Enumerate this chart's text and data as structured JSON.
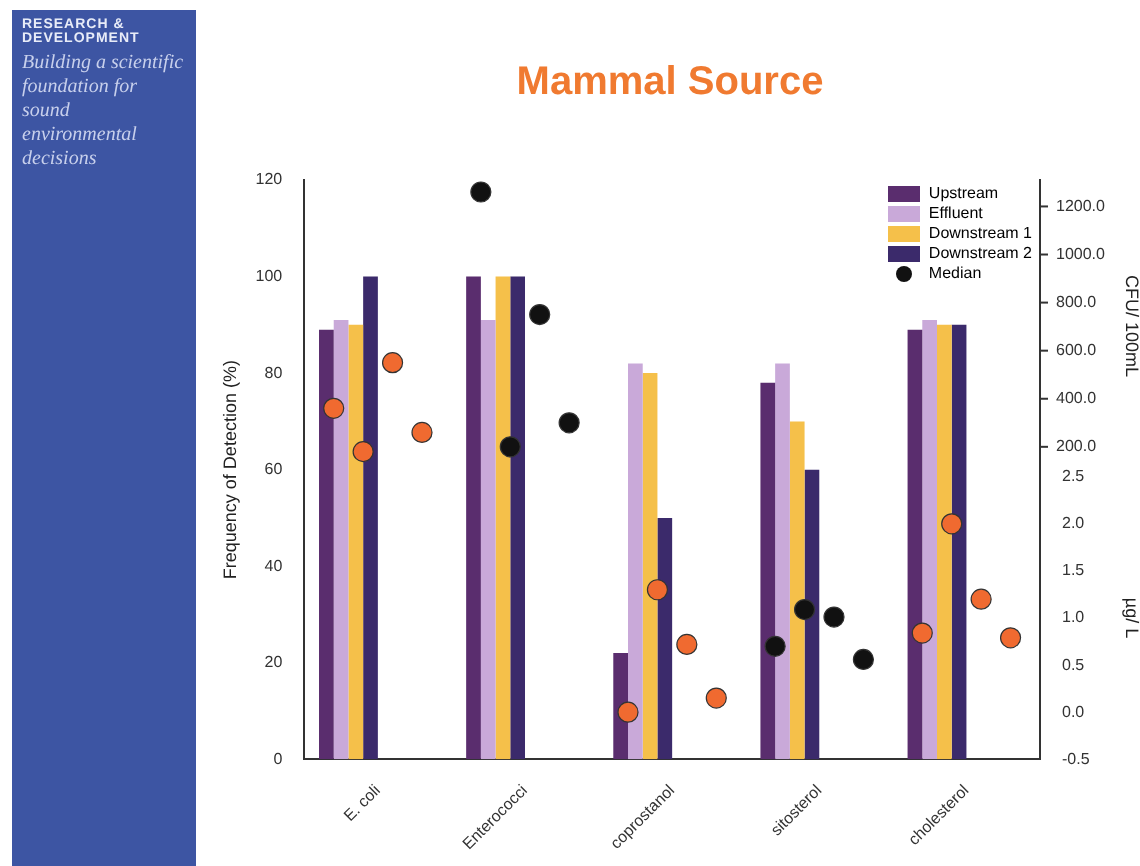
{
  "chart_data": {
    "type": "bar",
    "title": "Mammal Source",
    "ylabel": "Frequency of Detection (%)",
    "y2label": "CFU/ 100mL",
    "y3label": "µg/ L",
    "categories": [
      "E. coli",
      "Enterococci",
      "coprostanol",
      "sitosterol",
      "cholesterol"
    ],
    "series": [
      {
        "name": "Upstream",
        "color": "#5a2d6e",
        "values": [
          89,
          100,
          22,
          78,
          89
        ]
      },
      {
        "name": "Effluent",
        "color": "#c9a9d9",
        "values": [
          91,
          91,
          82,
          82,
          91
        ]
      },
      {
        "name": "Downstream 1",
        "color": "#f5c04a",
        "values": [
          90,
          100,
          80,
          70,
          90
        ]
      },
      {
        "name": "Downstream 2",
        "color": "#3b2a6b",
        "values": [
          100,
          100,
          50,
          60,
          90
        ]
      },
      {
        "name": "Median",
        "type": "scatter",
        "axis": "y2",
        "color": "#111111",
        "x": [
          "Enterococci",
          "Enterococci",
          "Enterococci",
          "Enterococci"
        ],
        "values": [
          1260,
          200,
          750,
          300
        ]
      },
      {
        "type": "scatter",
        "axis": "y2",
        "color": "#f06a30",
        "x": [
          "E. coli",
          "E. coli",
          "E. coli",
          "E. coli"
        ],
        "values": [
          360,
          180,
          550,
          260
        ]
      },
      {
        "type": "scatter",
        "axis": "y3",
        "color": "#f06a30",
        "x": [
          "coprostanol",
          "coprostanol",
          "coprostanol",
          "coprostanol",
          "cholesterol",
          "cholesterol",
          "cholesterol",
          "cholesterol"
        ],
        "values": [
          0.0,
          1.3,
          0.72,
          0.15,
          0.84,
          2.0,
          1.2,
          0.79
        ]
      },
      {
        "type": "scatter",
        "axis": "y3",
        "color": "#111111",
        "x": [
          "sitosterol",
          "sitosterol",
          "sitosterol",
          "sitosterol"
        ],
        "values": [
          0.7,
          1.09,
          1.01,
          0.56
        ]
      }
    ],
    "ylim": [
      0,
      120
    ],
    "yticks": [
      0,
      20,
      40,
      60,
      80,
      100,
      120
    ],
    "y2lim": [
      -1100,
      1310
    ],
    "y2ticks": [
      {
        "value": 200,
        "label": "200.0"
      },
      {
        "value": 400,
        "label": "400.0"
      },
      {
        "value": 600,
        "label": "600.0"
      },
      {
        "value": 800,
        "label": "800.0"
      },
      {
        "value": 1000,
        "label": "1000.0"
      },
      {
        "value": 1200,
        "label": "1200.0"
      }
    ],
    "y3lim": [
      -0.5,
      5.65
    ],
    "y3ticks": [
      {
        "value": -0.5,
        "label": "-0.5"
      },
      {
        "value": 0,
        "label": "0.0"
      },
      {
        "value": 0.5,
        "label": "0.5"
      },
      {
        "value": 1,
        "label": "1.0"
      },
      {
        "value": 1.5,
        "label": "1.5"
      },
      {
        "value": 2,
        "label": "2.0"
      },
      {
        "value": 2.5,
        "label": "2.5"
      }
    ],
    "legend": "top right",
    "marker": "circle",
    "annotations": [
      "RESEARCH & DEVELOPMENT",
      "Building a scientific foundation for sound environmental decisions"
    ]
  }
}
